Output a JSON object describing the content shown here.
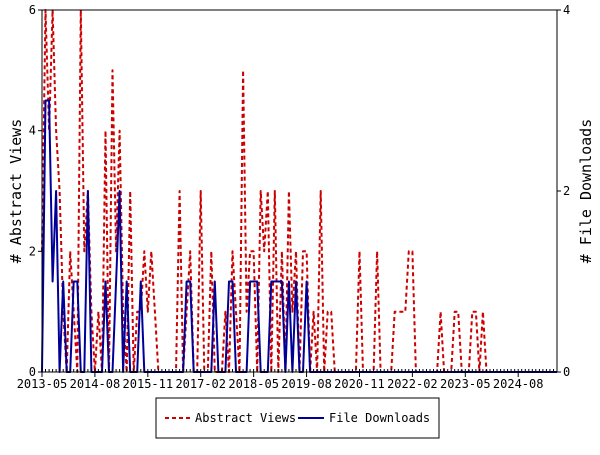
{
  "chart_data": {
    "type": "line",
    "title": "",
    "xlabel": "",
    "ylabel_left": "# Abstract Views",
    "ylabel_right": "# File Downloads",
    "grid": false,
    "legend_position": "bottom-center",
    "x_range": [
      "2013-05",
      "2025-07"
    ],
    "ylim_left": [
      0,
      6
    ],
    "ylim_right": [
      0,
      4
    ],
    "yticks_left": [
      "0",
      "2",
      "4",
      "6"
    ],
    "yticks_right": [
      "0",
      "2",
      "4"
    ],
    "xticks": [
      "2013-05",
      "2014-08",
      "2015-11",
      "2017-02",
      "2018-05",
      "2019-08",
      "2020-11",
      "2022-02",
      "2023-05",
      "2024-08"
    ],
    "series": [
      {
        "name": "Abstract Views",
        "axis": "left",
        "color": "#cc0000",
        "style": "dashed",
        "x": [
          "2013-05",
          "2013-06",
          "2013-07",
          "2013-08",
          "2013-09",
          "2013-10",
          "2013-11",
          "2013-12",
          "2014-01",
          "2014-02",
          "2014-03",
          "2014-04",
          "2014-05",
          "2014-06",
          "2014-07",
          "2014-08",
          "2014-09",
          "2014-10",
          "2014-11",
          "2014-12",
          "2015-01",
          "2015-02",
          "2015-03",
          "2015-04",
          "2015-05",
          "2015-06",
          "2015-07",
          "2015-08",
          "2015-09",
          "2015-10",
          "2015-11",
          "2015-12",
          "2016-01",
          "2016-02",
          "2016-03",
          "2016-04",
          "2016-05",
          "2016-06",
          "2016-07",
          "2016-08",
          "2016-09",
          "2016-10",
          "2016-11",
          "2016-12",
          "2017-01",
          "2017-02",
          "2017-03",
          "2017-04",
          "2017-05",
          "2017-06",
          "2017-07",
          "2017-08",
          "2017-09",
          "2017-10",
          "2017-11",
          "2017-12",
          "2018-01",
          "2018-02",
          "2018-03",
          "2018-04",
          "2018-05",
          "2018-06",
          "2018-07",
          "2018-08",
          "2018-09",
          "2018-10",
          "2018-11",
          "2018-12",
          "2019-01",
          "2019-02",
          "2019-03",
          "2019-04",
          "2019-05",
          "2019-06",
          "2019-07",
          "2019-08",
          "2019-09",
          "2019-10",
          "2019-11",
          "2019-12",
          "2020-01",
          "2020-02",
          "2020-03",
          "2020-04",
          "2020-05",
          "2020-06",
          "2020-07",
          "2020-08",
          "2020-09",
          "2020-10",
          "2020-11",
          "2020-12",
          "2021-01",
          "2021-02",
          "2021-03",
          "2021-04",
          "2021-05",
          "2021-06",
          "2021-07",
          "2021-08",
          "2021-09",
          "2021-10",
          "2021-11",
          "2021-12",
          "2022-01",
          "2022-02",
          "2022-03",
          "2022-04",
          "2022-05",
          "2022-06",
          "2022-07",
          "2022-08",
          "2022-09",
          "2022-10",
          "2022-11",
          "2022-12",
          "2023-01",
          "2023-02",
          "2023-03",
          "2023-04",
          "2023-05",
          "2023-06",
          "2023-07",
          "2023-08",
          "2023-09",
          "2023-10",
          "2023-11",
          "2023-12",
          "2024-01",
          "2024-02",
          "2024-03",
          "2024-04",
          "2024-05",
          "2024-06",
          "2024-07",
          "2024-08",
          "2024-09",
          "2024-10",
          "2024-11",
          "2024-12",
          "2025-01",
          "2025-02",
          "2025-03",
          "2025-04",
          "2025-05",
          "2025-06",
          "2025-07"
        ],
        "values": [
          2,
          6,
          4,
          6,
          4,
          3,
          1,
          0,
          2,
          1,
          0,
          6,
          2,
          3,
          1,
          0,
          1,
          0,
          4,
          0,
          5,
          2,
          4,
          1,
          0,
          3,
          0,
          1,
          1,
          2,
          1,
          2,
          1,
          0,
          0,
          0,
          0,
          0,
          0,
          3,
          0,
          1,
          2,
          0,
          0,
          3,
          0,
          0,
          2,
          0,
          0,
          0,
          1,
          0,
          2,
          1,
          0,
          5,
          1,
          2,
          2,
          0,
          3,
          2,
          3,
          0,
          3,
          0,
          2,
          0,
          3,
          1,
          2,
          0,
          2,
          2,
          0,
          1,
          0,
          3,
          0,
          1,
          1,
          0,
          0,
          0,
          0,
          0,
          0,
          0,
          2,
          0,
          0,
          0,
          0,
          2,
          0,
          0,
          0,
          0,
          1,
          1,
          1,
          1,
          2,
          2,
          0,
          0,
          0,
          0,
          0,
          0,
          0,
          1,
          0,
          0,
          0,
          1,
          1,
          0,
          0,
          0,
          1,
          1,
          0,
          1,
          0,
          0,
          0,
          0,
          0,
          0,
          0,
          0,
          0,
          0,
          0,
          0,
          0,
          0,
          0,
          0,
          0,
          0,
          0,
          0,
          0
        ],
        "note": ""
      },
      {
        "name": "File Downloads",
        "axis": "right",
        "color": "#000099",
        "style": "solid",
        "x": [
          "2013-05",
          "2013-06",
          "2013-07",
          "2013-08",
          "2013-09",
          "2013-10",
          "2013-11",
          "2013-12",
          "2014-01",
          "2014-02",
          "2014-03",
          "2014-04",
          "2014-05",
          "2014-06",
          "2014-07",
          "2014-08",
          "2014-09",
          "2014-10",
          "2014-11",
          "2014-12",
          "2015-01",
          "2015-02",
          "2015-03",
          "2015-04",
          "2015-05",
          "2015-06",
          "2015-07",
          "2015-08",
          "2015-09",
          "2015-10",
          "2015-11",
          "2015-12",
          "2016-01",
          "2016-02",
          "2016-03",
          "2016-04",
          "2016-05",
          "2016-06",
          "2016-07",
          "2016-08",
          "2016-09",
          "2016-10",
          "2016-11",
          "2016-12",
          "2017-01",
          "2017-02",
          "2017-03",
          "2017-04",
          "2017-05",
          "2017-06",
          "2017-07",
          "2017-08",
          "2017-09",
          "2017-10",
          "2017-11",
          "2017-12",
          "2018-01",
          "2018-02",
          "2018-03",
          "2018-04",
          "2018-05",
          "2018-06",
          "2018-07",
          "2018-08",
          "2018-09",
          "2018-10",
          "2018-11",
          "2018-12",
          "2019-01",
          "2019-02",
          "2019-03",
          "2019-04",
          "2019-05",
          "2019-06",
          "2019-07",
          "2019-08",
          "2019-09",
          "2019-10",
          "2019-11",
          "2019-12",
          "2020-01",
          "2020-02",
          "2020-03",
          "2020-04",
          "2020-05",
          "2020-06",
          "2020-07",
          "2020-08",
          "2020-09",
          "2020-10",
          "2020-11",
          "2020-12",
          "2021-01",
          "2021-02",
          "2021-03",
          "2021-04",
          "2021-05",
          "2021-06",
          "2021-07",
          "2021-08",
          "2021-09",
          "2021-10",
          "2021-11",
          "2021-12",
          "2022-01",
          "2022-02",
          "2022-03",
          "2022-04",
          "2022-05",
          "2022-06",
          "2022-07",
          "2022-08",
          "2022-09",
          "2022-10",
          "2022-11",
          "2022-12",
          "2023-01",
          "2023-02",
          "2023-03",
          "2023-04",
          "2023-05",
          "2023-06",
          "2023-07",
          "2023-08",
          "2023-09",
          "2023-10",
          "2023-11",
          "2023-12",
          "2024-01",
          "2024-02",
          "2024-03",
          "2024-04",
          "2024-05",
          "2024-06",
          "2024-07",
          "2024-08",
          "2024-09",
          "2024-10",
          "2024-11",
          "2024-12",
          "2025-01",
          "2025-02",
          "2025-03",
          "2025-04",
          "2025-05",
          "2025-06",
          "2025-07"
        ],
        "values": [
          0,
          3,
          3,
          1,
          2,
          0,
          1,
          0,
          0,
          1,
          1,
          0,
          0,
          2,
          0,
          0,
          0,
          0,
          1,
          0,
          0,
          1,
          2,
          0,
          1,
          0,
          0,
          0,
          1,
          0,
          0,
          0,
          0,
          0,
          0,
          0,
          0,
          0,
          0,
          0,
          0,
          1,
          1,
          0,
          0,
          0,
          0,
          0,
          0,
          1,
          0,
          0,
          0,
          1,
          1,
          0,
          0,
          0,
          0,
          1,
          1,
          1,
          0,
          0,
          0,
          1,
          1,
          1,
          1,
          0,
          1,
          0,
          1,
          0,
          0,
          1,
          0,
          0,
          0,
          0,
          0,
          0,
          0,
          0,
          0,
          0,
          0,
          0,
          0,
          0,
          0,
          0,
          0,
          0,
          0,
          0,
          0,
          0,
          0,
          0,
          0,
          0,
          0,
          0,
          0,
          0,
          0,
          0,
          0,
          0,
          0,
          0,
          0,
          0,
          0,
          0,
          0,
          0,
          0,
          0,
          0,
          0,
          0,
          0,
          0,
          0,
          0,
          0,
          0,
          0,
          0,
          0,
          0,
          0,
          0,
          0,
          0,
          0,
          0,
          0,
          0,
          0,
          0,
          0,
          0,
          0,
          0
        ]
      }
    ]
  }
}
